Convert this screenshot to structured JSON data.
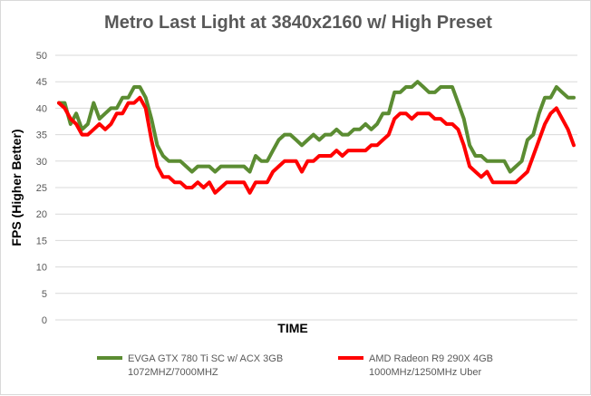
{
  "chart_data": {
    "type": "line",
    "title": "Metro Last Light at 3840x2160 w/ High Preset",
    "xlabel": "TIME",
    "ylabel": "FPS (Higher Better)",
    "ylim": [
      0,
      50
    ],
    "yticks": [
      "0",
      "5",
      "10",
      "15",
      "20",
      "25",
      "30",
      "35",
      "40",
      "45",
      "50"
    ],
    "grid": true,
    "legend": "bottom",
    "series": [
      {
        "name_lines": [
          "EVGA GTX 780 Ti SC w/ ACX 3GB",
          "1072MHZ/7000MHZ"
        ],
        "color": "#5b8c32",
        "values": [
          41,
          41,
          37,
          39,
          36,
          37,
          41,
          38,
          39,
          40,
          40,
          42,
          42,
          44,
          44,
          42,
          38,
          33,
          31,
          30,
          30,
          30,
          29,
          28,
          29,
          29,
          29,
          28,
          29,
          29,
          29,
          29,
          29,
          28,
          31,
          30,
          30,
          32,
          34,
          35,
          35,
          34,
          33,
          34,
          35,
          34,
          35,
          35,
          36,
          35,
          35,
          36,
          36,
          37,
          36,
          37,
          39,
          39,
          43,
          43,
          44,
          44,
          45,
          44,
          43,
          43,
          44,
          44,
          44,
          41,
          38,
          33,
          31,
          31,
          30,
          30,
          30,
          30,
          28,
          29,
          30,
          34,
          35,
          39,
          42,
          42,
          44,
          43,
          42,
          42
        ]
      },
      {
        "name_lines": [
          "AMD Radeon R9 290X 4GB",
          "1000MHz/1250MHz Uber"
        ],
        "color": "#ff0000",
        "values": [
          41,
          40,
          38,
          37,
          35,
          35,
          36,
          37,
          36,
          37,
          39,
          39,
          41,
          41,
          42,
          40,
          34,
          29,
          27,
          27,
          26,
          26,
          25,
          25,
          26,
          25,
          26,
          24,
          25,
          26,
          26,
          26,
          26,
          24,
          26,
          26,
          26,
          28,
          29,
          30,
          30,
          30,
          28,
          30,
          30,
          31,
          31,
          31,
          32,
          31,
          32,
          32,
          32,
          32,
          33,
          33,
          34,
          35,
          38,
          39,
          39,
          38,
          39,
          39,
          39,
          38,
          38,
          37,
          37,
          36,
          33,
          29,
          28,
          27,
          28,
          26,
          26,
          26,
          26,
          26,
          27,
          28,
          31,
          34,
          37,
          39,
          40,
          38,
          36,
          33
        ]
      }
    ]
  }
}
